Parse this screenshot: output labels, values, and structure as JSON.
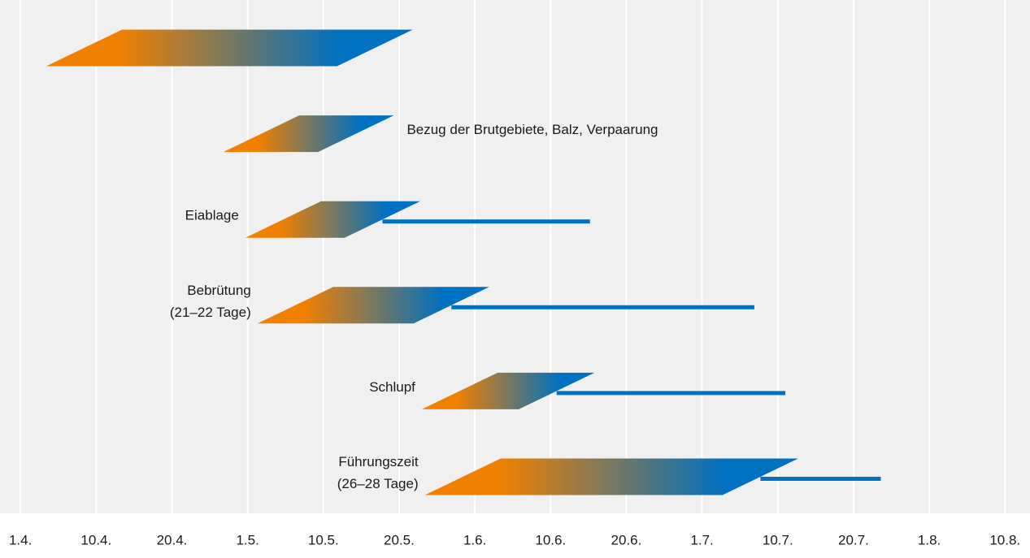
{
  "chart_data": {
    "type": "gantt",
    "colors": {
      "start": "#f08000",
      "end": "#0070c0",
      "background": "#f0f0f0",
      "grid": "#ffffff"
    },
    "grid": true,
    "xlim": [
      -0.27,
      13.33
    ],
    "xticks": [
      {
        "value": 0,
        "label": "1.4."
      },
      {
        "value": 1,
        "label": "10.4."
      },
      {
        "value": 2,
        "label": "20.4."
      },
      {
        "value": 3,
        "label": "1.5."
      },
      {
        "value": 4,
        "label": "10.5."
      },
      {
        "value": 5,
        "label": "20.5."
      },
      {
        "value": 6,
        "label": "1.6."
      },
      {
        "value": 7,
        "label": "10.6."
      },
      {
        "value": 8,
        "label": "20.6."
      },
      {
        "value": 9,
        "label": "1.7."
      },
      {
        "value": 10,
        "label": "10.7."
      },
      {
        "value": 11,
        "label": "20.7."
      },
      {
        "value": 12,
        "label": "1.8."
      },
      {
        "value": 13,
        "label": "10.8."
      }
    ],
    "tasks": [
      {
        "start": 0.84,
        "end": 4.68
      },
      {
        "label": [
          "Bezug der Brutgebiete, Balz, Verpaarung"
        ],
        "label_side": "right",
        "start": 3.18,
        "end": 4.43
      },
      {
        "label": [
          "Eiablage"
        ],
        "label_side": "left",
        "start": 3.47,
        "end": 4.78,
        "tail": 7.52
      },
      {
        "label": [
          "Bebrütung",
          "(21–22 Tage)"
        ],
        "label_side": "left",
        "start": 3.63,
        "end": 5.69,
        "tail": 9.69
      },
      {
        "label": [
          "Schlupf"
        ],
        "label_side": "left",
        "start": 5.8,
        "end": 7.08,
        "tail": 10.1
      },
      {
        "label": [
          "Führungszeit",
          "(26–28 Tage)"
        ],
        "label_side": "left",
        "start": 5.84,
        "end": 9.77,
        "tail": 11.36
      }
    ]
  }
}
